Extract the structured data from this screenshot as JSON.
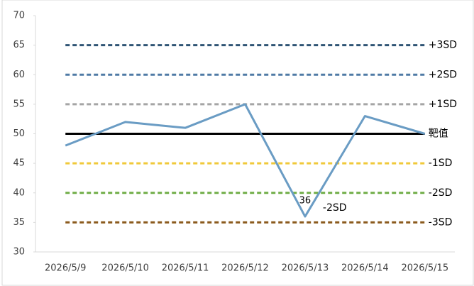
{
  "chart_data": {
    "type": "line",
    "categories": [
      "2026/5/9",
      "2026/5/10",
      "2026/5/11",
      "2026/5/12",
      "2026/5/13",
      "2026/5/14",
      "2026/5/15"
    ],
    "values": [
      48,
      52,
      51,
      55,
      36,
      53,
      50
    ],
    "color": "#6a9cc4",
    "ylim": [
      30,
      70
    ],
    "yticks": [
      30,
      35,
      40,
      45,
      50,
      55,
      60,
      65,
      70
    ],
    "reference_lines": [
      {
        "name": "+3SD",
        "value": 65,
        "color": "#2f5474",
        "dashed": true
      },
      {
        "name": "+2SD",
        "value": 60,
        "color": "#4f7aa5",
        "dashed": true
      },
      {
        "name": "+1SD",
        "value": 55,
        "color": "#a5a5a5",
        "dashed": true
      },
      {
        "name": "靶值",
        "value": 50,
        "color": "#000000",
        "dashed": false
      },
      {
        "name": "-1SD",
        "value": 45,
        "color": "#f0c93a",
        "dashed": true
      },
      {
        "name": "-2SD",
        "value": 40,
        "color": "#70ad47",
        "dashed": true
      },
      {
        "name": "-3SD",
        "value": 35,
        "color": "#8b5a1d",
        "dashed": true
      }
    ],
    "annotations": [
      "36",
      "-2SD"
    ]
  }
}
